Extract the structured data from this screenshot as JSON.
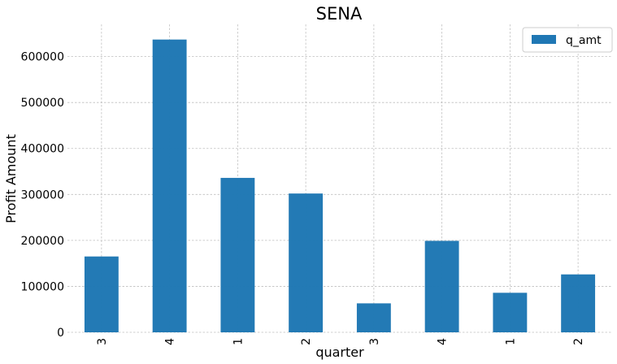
{
  "chart_data": {
    "type": "bar",
    "title": "SENA",
    "xlabel": "quarter",
    "ylabel": "Profit Amount",
    "categories": [
      "3",
      "4",
      "1",
      "2",
      "3",
      "4",
      "1",
      "2"
    ],
    "series": [
      {
        "name": "q_amt",
        "values": [
          165000,
          637000,
          336000,
          302000,
          63000,
          199000,
          86000,
          126000
        ],
        "color": "#1f77b4"
      }
    ],
    "ylim": [
      0,
      670000
    ],
    "yticks": [
      0,
      100000,
      200000,
      300000,
      400000,
      500000,
      600000
    ],
    "ytick_labels": [
      "0",
      "100000",
      "200000",
      "300000",
      "400000",
      "500000",
      "600000"
    ],
    "grid": true,
    "legend_position": "top-right"
  }
}
